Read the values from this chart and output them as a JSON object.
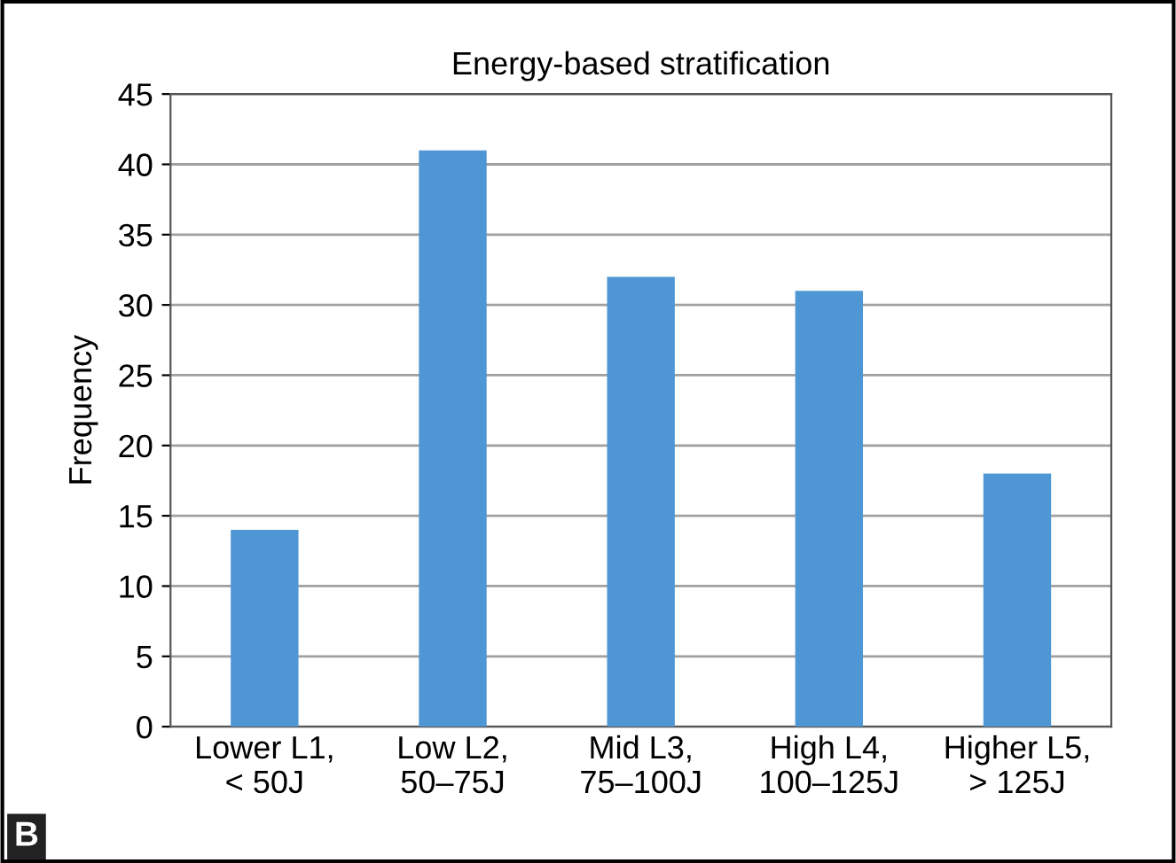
{
  "chart_data": {
    "type": "bar",
    "title": "Energy-based stratification",
    "ylabel": "Frequency",
    "categories": [
      "Lower L1,\n< 50J",
      "Low L2,\n50–75J",
      "Mid L3,\n75–100J",
      "High L4,\n100–125J",
      "Higher L5,\n> 125J"
    ],
    "values": [
      14,
      41,
      32,
      31,
      18
    ],
    "color": "#4e97d4",
    "ylim": [
      0,
      45
    ],
    "yticks": [
      0,
      5,
      10,
      15,
      20,
      25,
      30,
      35,
      40,
      45
    ],
    "grid": "y",
    "annotations": [
      "B"
    ]
  }
}
